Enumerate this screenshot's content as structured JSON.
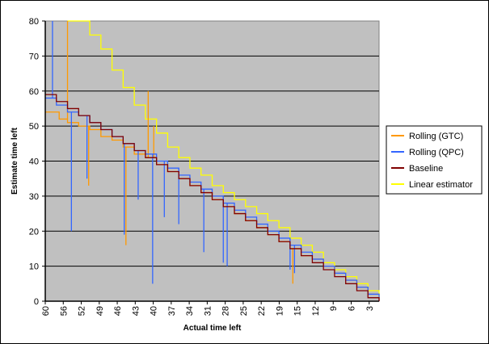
{
  "chart_data": {
    "type": "line",
    "xlabel": "Actual time left",
    "ylabel": "Estimate time left",
    "xlim": [
      60,
      0
    ],
    "ylim": [
      0,
      80
    ],
    "x_tick_labels": [
      "60",
      "56",
      "52",
      "49",
      "46",
      "43",
      "40",
      "37",
      "34",
      "31",
      "28",
      "25",
      "22",
      "19",
      "15",
      "12",
      "9",
      "6",
      "3"
    ],
    "y_tick_labels": [
      "0",
      "10",
      "20",
      "30",
      "40",
      "50",
      "60",
      "70",
      "80"
    ],
    "grid": "horizontal",
    "legend_position": "right",
    "plot_background": "#c0c0c0",
    "series": [
      {
        "name": "Rolling (GTC)",
        "color": "#ff9900",
        "x": [
          60,
          57.5,
          56,
          54,
          52,
          50,
          48,
          46,
          44,
          42,
          40,
          38,
          36,
          34,
          32,
          30,
          28,
          26,
          24,
          22,
          20,
          18,
          16,
          14,
          12,
          10,
          8,
          6,
          4,
          2,
          0
        ],
        "y": [
          54,
          52,
          51,
          50,
          49,
          47,
          46,
          44,
          42,
          41,
          39,
          37,
          35,
          33,
          31,
          29,
          27,
          25,
          23,
          21,
          19,
          17,
          15,
          13,
          12,
          10,
          8,
          6,
          4,
          2,
          0
        ],
        "spikes": [
          [
            56,
            80
          ],
          [
            52.2,
            33
          ],
          [
            45.5,
            16
          ],
          [
            41.5,
            60
          ],
          [
            40.5,
            50
          ],
          [
            15.5,
            5
          ]
        ]
      },
      {
        "name": "Rolling (QPC)",
        "color": "#3366ff",
        "x": [
          60,
          58,
          56,
          54,
          52,
          50,
          48,
          46,
          44,
          42,
          40,
          38,
          36,
          34,
          32,
          30,
          28,
          26,
          24,
          22,
          20,
          18,
          16,
          14,
          12,
          10,
          8,
          6,
          4,
          2,
          0
        ],
        "y": [
          58,
          56,
          54,
          53,
          51,
          49,
          47,
          45,
          43,
          42,
          40,
          38,
          36,
          34,
          32,
          30,
          28,
          26,
          24,
          22,
          20,
          18,
          16,
          14,
          12,
          10,
          8,
          6,
          4,
          2,
          0
        ],
        "spikes": [
          [
            58.7,
            80
          ],
          [
            55.3,
            20
          ],
          [
            52.5,
            35
          ],
          [
            45.8,
            19
          ],
          [
            43.3,
            29
          ],
          [
            40.7,
            5
          ],
          [
            38.6,
            24
          ],
          [
            36.0,
            22
          ],
          [
            31.5,
            14
          ],
          [
            28.0,
            11
          ],
          [
            27.3,
            10
          ],
          [
            16.0,
            9
          ],
          [
            15.2,
            8
          ]
        ]
      },
      {
        "name": "Baseline",
        "color": "#800000",
        "x": [
          60,
          58,
          56,
          54,
          52,
          50,
          48,
          46,
          44,
          42,
          40,
          38,
          36,
          34,
          32,
          30,
          28,
          26,
          24,
          22,
          20,
          18,
          16,
          14,
          12,
          10,
          8,
          6,
          4,
          2,
          0
        ],
        "y": [
          59,
          57,
          55,
          53,
          51,
          49,
          47,
          45,
          43,
          41,
          39,
          37,
          35,
          33,
          31,
          29,
          27,
          25,
          23,
          21,
          19,
          17,
          15,
          13,
          11,
          9,
          7,
          5,
          3,
          1,
          0
        ]
      },
      {
        "name": "Linear estimator",
        "color": "#ffff00",
        "x": [
          56,
          54,
          52,
          50,
          48,
          46,
          44,
          42,
          40,
          38,
          36,
          34,
          32,
          30,
          28,
          26,
          24,
          22,
          20,
          18,
          16,
          14,
          12,
          10,
          8,
          6,
          4,
          2,
          0
        ],
        "y": [
          80,
          80,
          76,
          72,
          66,
          61,
          56,
          52,
          48,
          44,
          41,
          38,
          36,
          33,
          31,
          29,
          27,
          25,
          23,
          21,
          18,
          16,
          14,
          11,
          9,
          7,
          5,
          3,
          1
        ]
      }
    ]
  }
}
